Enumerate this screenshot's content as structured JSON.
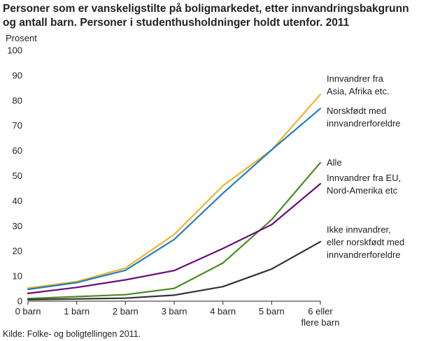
{
  "title": "Personer som er vanskeligstilte på boligmarkedet, etter innvandringsbakgrunn og antall barn. Personer i studenthusholdninger holdt utenfor. 2011",
  "source": "Kilde: Folke- og boligtellingen 2011.",
  "chart_data": {
    "type": "line",
    "title": "Personer som er vanskeligstilte på boligmarkedet, etter innvandringsbakgrunn og antall barn. Personer i studenthusholdninger holdt utenfor. 2011",
    "ylabel": "Prosent",
    "xlabel": "",
    "ylim": [
      0,
      100
    ],
    "yticks": [
      0,
      10,
      20,
      30,
      40,
      50,
      60,
      70,
      80,
      90,
      100
    ],
    "categories": [
      [
        "0 barn"
      ],
      [
        "1 barn"
      ],
      [
        "2 barn"
      ],
      [
        "3 barn"
      ],
      [
        "4 barn"
      ],
      [
        "5 barn"
      ],
      [
        "6 eller",
        "flere barn"
      ]
    ],
    "grid": false,
    "legend": "right",
    "series": [
      {
        "name": [
          "Innvandrer fra",
          "Asia, Afrika etc."
        ],
        "color": "#f0b323",
        "values": [
          5.2,
          7.8,
          13.2,
          26.6,
          46.0,
          60.3,
          82.4
        ]
      },
      {
        "name": [
          "Norskfødt med",
          "innvandrerforeldre"
        ],
        "color": "#1f7fc1",
        "values": [
          4.7,
          7.4,
          12.3,
          24.6,
          43.0,
          60.3,
          76.8
        ]
      },
      {
        "name": [
          "Alle"
        ],
        "color": "#4a8a1e",
        "values": [
          1.0,
          1.8,
          2.6,
          5.1,
          15.2,
          32.5,
          55.2
        ]
      },
      {
        "name": [
          "Innvandrer fra EU,",
          "Nord-Amerika  etc"
        ],
        "color": "#6a0d7a",
        "values": [
          3.1,
          5.5,
          8.5,
          12.2,
          21.0,
          30.5,
          46.8
        ]
      },
      {
        "name": [
          "Ikke innvandrer,",
          "eller norskfødt med",
          "innvandrerforeldre"
        ],
        "color": "#333333",
        "values": [
          0.6,
          0.9,
          1.2,
          2.4,
          5.8,
          12.8,
          23.7
        ]
      }
    ]
  }
}
